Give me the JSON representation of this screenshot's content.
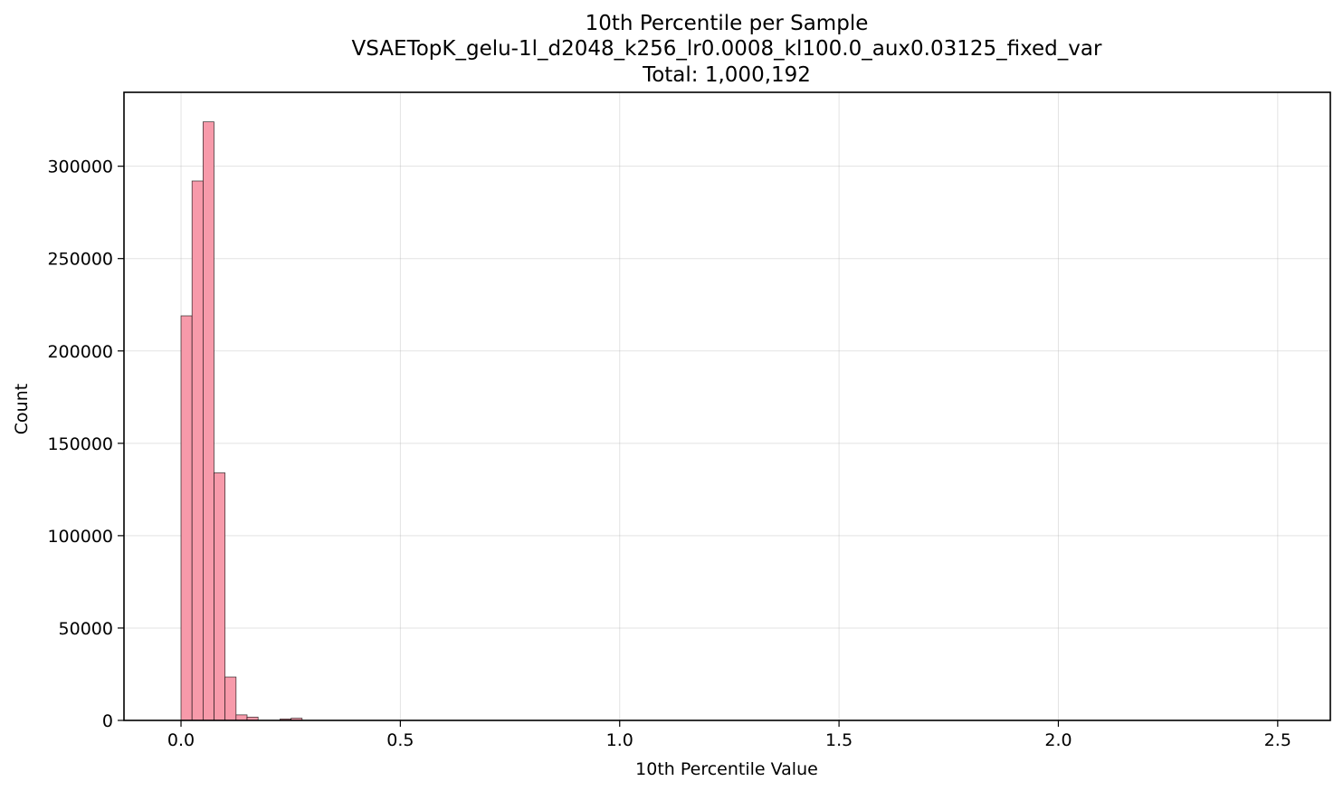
{
  "chart_data": {
    "type": "bar",
    "title_lines": [
      "10th Percentile per Sample",
      "VSAETopK_gelu-1l_d2048_k256_lr0.0008_kl100.0_aux0.03125_fixed_var",
      "Total: 1,000,192"
    ],
    "xlabel": "10th Percentile Value",
    "ylabel": "Count",
    "xlim": [
      -0.13,
      2.62
    ],
    "ylim": [
      0,
      340000
    ],
    "x_ticks": [
      0.0,
      0.5,
      1.0,
      1.5,
      2.0,
      2.5
    ],
    "x_tick_labels": [
      "0.0",
      "0.5",
      "1.0",
      "1.5",
      "2.0",
      "2.5"
    ],
    "y_ticks": [
      0,
      50000,
      100000,
      150000,
      200000,
      250000,
      300000
    ],
    "y_tick_labels": [
      "0",
      "50000",
      "100000",
      "150000",
      "200000",
      "250000",
      "300000"
    ],
    "grid": true,
    "bar_color": "#f79aaa",
    "bin_edges": [
      0.0,
      0.0251,
      0.0502,
      0.0753,
      0.1004,
      0.1255,
      0.1506,
      0.1757,
      0.2008,
      0.2259,
      0.251,
      0.2761
    ],
    "values": [
      219000,
      292000,
      324000,
      134000,
      23500,
      3000,
      1800,
      0,
      0,
      800,
      1200
    ]
  }
}
